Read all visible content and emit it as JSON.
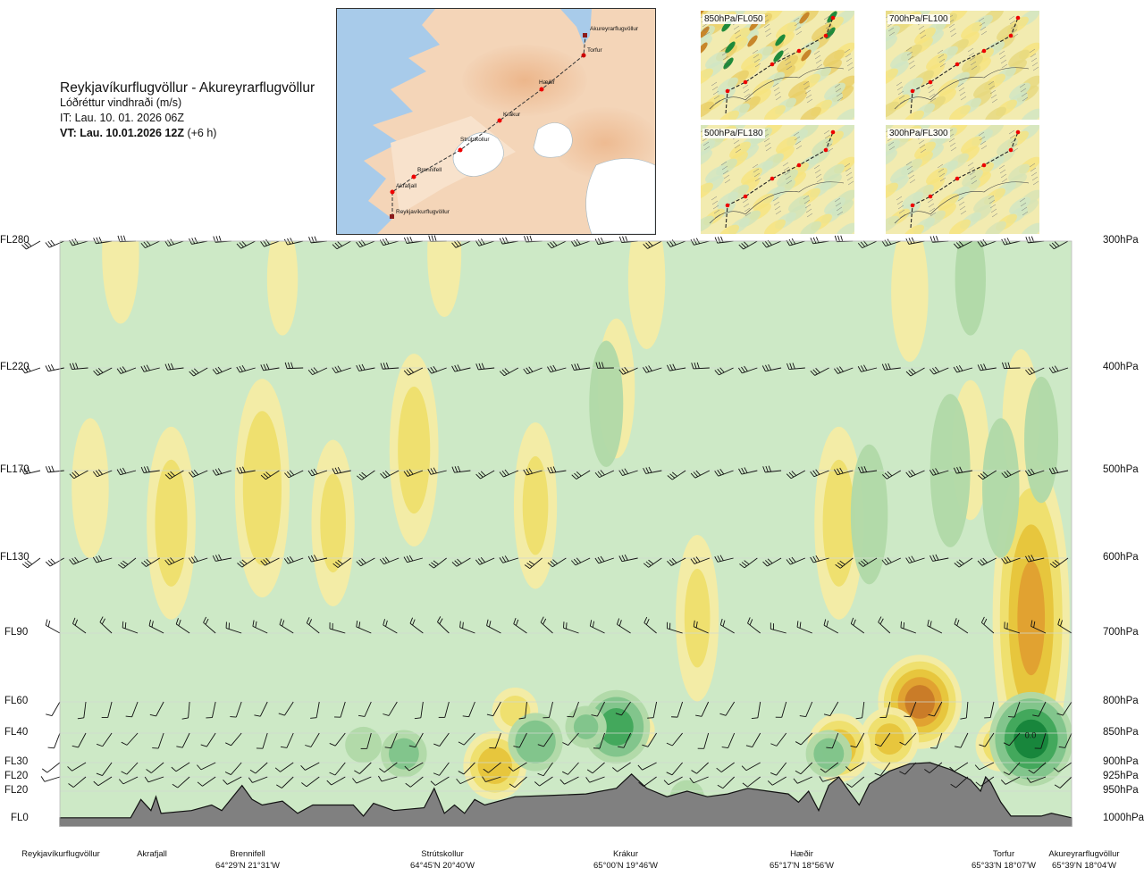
{
  "header": {
    "route": "Reykjavíkurflugvöllur - Akureyrarflugvöllur",
    "parameter": "Lóðréttur vindhraði (m/s)",
    "issue_time": "IT: Lau. 10. 01. 2026 06Z",
    "valid_time": "VT: Lau. 10.01.2026 12Z",
    "valid_offset": "(+6 h)"
  },
  "route_map": {
    "points": [
      {
        "name": "Akureyrarflugvöllur"
      },
      {
        "name": "Torfur"
      },
      {
        "name": "Hæðir"
      },
      {
        "name": "Krákur"
      },
      {
        "name": "Strútskollur"
      },
      {
        "name": "Brennifell"
      },
      {
        "name": "Akrafjall"
      },
      {
        "name": "Reykjavíkurflugvöllur"
      }
    ]
  },
  "mini_maps": [
    {
      "label": "850hPa/FL050",
      "color": "#e9ce68"
    },
    {
      "label": "700hPa/FL100",
      "color": "#e6d87e"
    },
    {
      "label": "500hPa/FL180",
      "color": "#cfe3b9"
    },
    {
      "label": "300hPa/FL300",
      "color": "#d7e3b5"
    }
  ],
  "colors": {
    "neutral": "#cde9c6",
    "updraft_levels": [
      "#b0d9a8",
      "#7fc48a",
      "#3fa65a",
      "#16843a"
    ],
    "downdraft_levels": [
      "#f4eca4",
      "#eedf6c",
      "#e6c43a",
      "#e0a030",
      "#c87a28"
    ],
    "terrain": "#808080",
    "grid": "#cfd8cf"
  },
  "chart_data": {
    "type": "heatmap",
    "title": "Lóðréttur vindhraði (m/s)",
    "flight_levels": [
      {
        "fl": "FL280",
        "hpa": "300hPa"
      },
      {
        "fl": "FL220",
        "hpa": "400hPa"
      },
      {
        "fl": "FL170",
        "hpa": "500hPa"
      },
      {
        "fl": "FL130",
        "hpa": "600hPa"
      },
      {
        "fl": "FL90",
        "hpa": "700hPa"
      },
      {
        "fl": "FL60",
        "hpa": "800hPa"
      },
      {
        "fl": "FL40",
        "hpa": "850hPa"
      },
      {
        "fl": "FL30",
        "hpa": "900hPa"
      },
      {
        "fl": "FL20",
        "hpa": "925hPa"
      },
      {
        "fl": "FL20",
        "hpa": "950hPa"
      },
      {
        "fl": "FL0",
        "hpa": "1000hPa"
      }
    ],
    "locations": [
      {
        "name": "Reykjavíkurflugvöllur",
        "coord": ""
      },
      {
        "name": "Akrafjall",
        "coord": ""
      },
      {
        "name": "Brennifell",
        "coord": "64°29'N 21°31'W"
      },
      {
        "name": "Strútskollur",
        "coord": "64°45'N 20°40'W"
      },
      {
        "name": "Krákur",
        "coord": "65°00'N 19°46'W"
      },
      {
        "name": "Hæðir",
        "coord": "65°17'N 18°56'W"
      },
      {
        "name": "Torfur",
        "coord": "65°33'N 18°07'W"
      },
      {
        "name": "Akureyrarflugvöllur",
        "coord": "65°39'N 18°04'W"
      }
    ],
    "contour_label": "0.0",
    "xrange_fraction": [
      0,
      1
    ],
    "cells": [
      {
        "x": 0.03,
        "p": 520,
        "v": -0.3
      },
      {
        "x": 0.11,
        "p": 560,
        "v": -0.5
      },
      {
        "x": 0.2,
        "p": 520,
        "v": -0.6
      },
      {
        "x": 0.27,
        "p": 560,
        "v": -0.4
      },
      {
        "x": 0.35,
        "p": 480,
        "v": -0.5
      },
      {
        "x": 0.47,
        "p": 540,
        "v": -0.4
      },
      {
        "x": 0.55,
        "p": 420,
        "v": -0.3
      },
      {
        "x": 0.63,
        "p": 680,
        "v": -0.4
      },
      {
        "x": 0.77,
        "p": 560,
        "v": -0.5
      },
      {
        "x": 0.9,
        "p": 480,
        "v": -0.3
      },
      {
        "x": 0.06,
        "p": 310,
        "v": -0.3
      },
      {
        "x": 0.22,
        "p": 330,
        "v": -0.2
      },
      {
        "x": 0.38,
        "p": 310,
        "v": -0.25
      },
      {
        "x": 0.58,
        "p": 330,
        "v": -0.3
      },
      {
        "x": 0.84,
        "p": 340,
        "v": -0.3
      },
      {
        "x": 0.95,
        "p": 450,
        "v": -0.3
      },
      {
        "x": 0.96,
        "p": 680,
        "v": -1.0
      },
      {
        "x": 0.85,
        "p": 800,
        "v": -1.4
      },
      {
        "x": 0.82,
        "p": 860,
        "v": -0.8
      },
      {
        "x": 0.77,
        "p": 875,
        "v": -0.9
      },
      {
        "x": 0.43,
        "p": 905,
        "v": -0.9
      },
      {
        "x": 0.57,
        "p": 845,
        "v": -0.3
      },
      {
        "x": 0.45,
        "p": 815,
        "v": -0.5
      },
      {
        "x": 0.93,
        "p": 870,
        "v": -0.6
      },
      {
        "x": 0.96,
        "p": 860,
        "v": 1.4
      },
      {
        "x": 0.55,
        "p": 840,
        "v": 1.0
      },
      {
        "x": 0.47,
        "p": 865,
        "v": 0.7
      },
      {
        "x": 0.34,
        "p": 885,
        "v": 0.5
      },
      {
        "x": 0.76,
        "p": 885,
        "v": 0.5
      },
      {
        "x": 0.3,
        "p": 870,
        "v": 0.3
      },
      {
        "x": 0.52,
        "p": 840,
        "v": 0.4
      },
      {
        "x": 0.8,
        "p": 550,
        "v": 0.3
      },
      {
        "x": 0.88,
        "p": 500,
        "v": 0.35
      },
      {
        "x": 0.93,
        "p": 520,
        "v": 0.3
      },
      {
        "x": 0.54,
        "p": 435,
        "v": 0.25
      },
      {
        "x": 0.97,
        "p": 470,
        "v": 0.25
      },
      {
        "x": 0.9,
        "p": 330,
        "v": 0.2
      },
      {
        "x": 0.62,
        "p": 960,
        "v": 0.25
      }
    ],
    "terrain_profile_hpa": [
      [
        0.0,
        998
      ],
      [
        0.07,
        998
      ],
      [
        0.08,
        965
      ],
      [
        0.09,
        985
      ],
      [
        0.095,
        960
      ],
      [
        0.1,
        990
      ],
      [
        0.13,
        985
      ],
      [
        0.15,
        975
      ],
      [
        0.16,
        985
      ],
      [
        0.18,
        940
      ],
      [
        0.19,
        965
      ],
      [
        0.2,
        975
      ],
      [
        0.22,
        968
      ],
      [
        0.235,
        990
      ],
      [
        0.25,
        975
      ],
      [
        0.29,
        975
      ],
      [
        0.3,
        995
      ],
      [
        0.31,
        972
      ],
      [
        0.33,
        985
      ],
      [
        0.36,
        980
      ],
      [
        0.37,
        945
      ],
      [
        0.38,
        990
      ],
      [
        0.39,
        975
      ],
      [
        0.4,
        990
      ],
      [
        0.41,
        965
      ],
      [
        0.42,
        975
      ],
      [
        0.45,
        960
      ],
      [
        0.48,
        958
      ],
      [
        0.52,
        955
      ],
      [
        0.55,
        945
      ],
      [
        0.565,
        920
      ],
      [
        0.58,
        945
      ],
      [
        0.6,
        960
      ],
      [
        0.62,
        950
      ],
      [
        0.64,
        960
      ],
      [
        0.66,
        955
      ],
      [
        0.68,
        945
      ],
      [
        0.7,
        950
      ],
      [
        0.72,
        955
      ],
      [
        0.73,
        970
      ],
      [
        0.74,
        950
      ],
      [
        0.75,
        985
      ],
      [
        0.76,
        940
      ],
      [
        0.77,
        925
      ],
      [
        0.78,
        950
      ],
      [
        0.79,
        975
      ],
      [
        0.8,
        938
      ],
      [
        0.82,
        915
      ],
      [
        0.84,
        902
      ],
      [
        0.86,
        900
      ],
      [
        0.88,
        912
      ],
      [
        0.9,
        930
      ],
      [
        0.91,
        950
      ],
      [
        0.915,
        925
      ],
      [
        0.92,
        935
      ],
      [
        0.93,
        970
      ],
      [
        0.94,
        995
      ],
      [
        0.97,
        995
      ],
      [
        0.98,
        990
      ],
      [
        1.0,
        998
      ]
    ],
    "wind_barb_rows": [
      {
        "p": 300,
        "dir": 255,
        "kt": 30
      },
      {
        "p": 400,
        "dir": 255,
        "kt": 35
      },
      {
        "p": 500,
        "dir": 250,
        "kt": 30
      },
      {
        "p": 600,
        "dir": 245,
        "kt": 25
      },
      {
        "p": 700,
        "dir": 300,
        "kt": 15
      },
      {
        "p": 800,
        "dir": 200,
        "kt": 10
      },
      {
        "p": 850,
        "dir": 210,
        "kt": 10
      },
      {
        "p": 900,
        "dir": 230,
        "kt": 10
      },
      {
        "p": 925,
        "dir": 240,
        "kt": 10
      }
    ]
  }
}
